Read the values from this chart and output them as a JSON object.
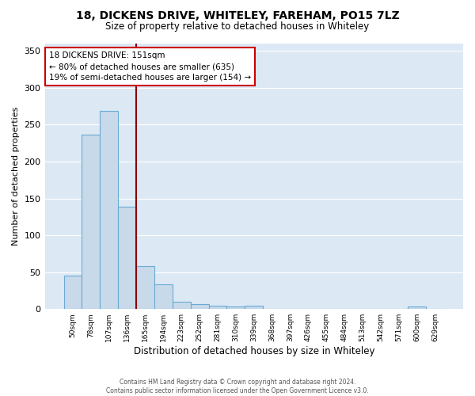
{
  "title1": "18, DICKENS DRIVE, WHITELEY, FAREHAM, PO15 7LZ",
  "title2": "Size of property relative to detached houses in Whiteley",
  "xlabel": "Distribution of detached houses by size in Whiteley",
  "ylabel": "Number of detached properties",
  "footer1": "Contains HM Land Registry data © Crown copyright and database right 2024.",
  "footer2": "Contains public sector information licensed under the Open Government Licence v3.0.",
  "annotation_line1": "18 DICKENS DRIVE: 151sqm",
  "annotation_line2": "← 80% of detached houses are smaller (635)",
  "annotation_line3": "19% of semi-detached houses are larger (154) →",
  "bar_labels": [
    "50sqm",
    "78sqm",
    "107sqm",
    "136sqm",
    "165sqm",
    "194sqm",
    "223sqm",
    "252sqm",
    "281sqm",
    "310sqm",
    "339sqm",
    "368sqm",
    "397sqm",
    "426sqm",
    "455sqm",
    "484sqm",
    "513sqm",
    "542sqm",
    "571sqm",
    "600sqm",
    "629sqm"
  ],
  "bar_values": [
    45,
    237,
    269,
    139,
    58,
    33,
    10,
    7,
    4,
    3,
    4,
    0,
    0,
    0,
    0,
    0,
    0,
    0,
    0,
    3,
    0
  ],
  "bar_color": "#c8daea",
  "bar_edge_color": "#6aaad4",
  "vline_x": 3.5,
  "vline_color": "#8b0000",
  "plot_bg_color": "#dce9f5",
  "fig_bg_color": "#ffffff",
  "grid_color": "#ffffff",
  "ylim": [
    0,
    360
  ],
  "yticks": [
    0,
    50,
    100,
    150,
    200,
    250,
    300,
    350
  ]
}
